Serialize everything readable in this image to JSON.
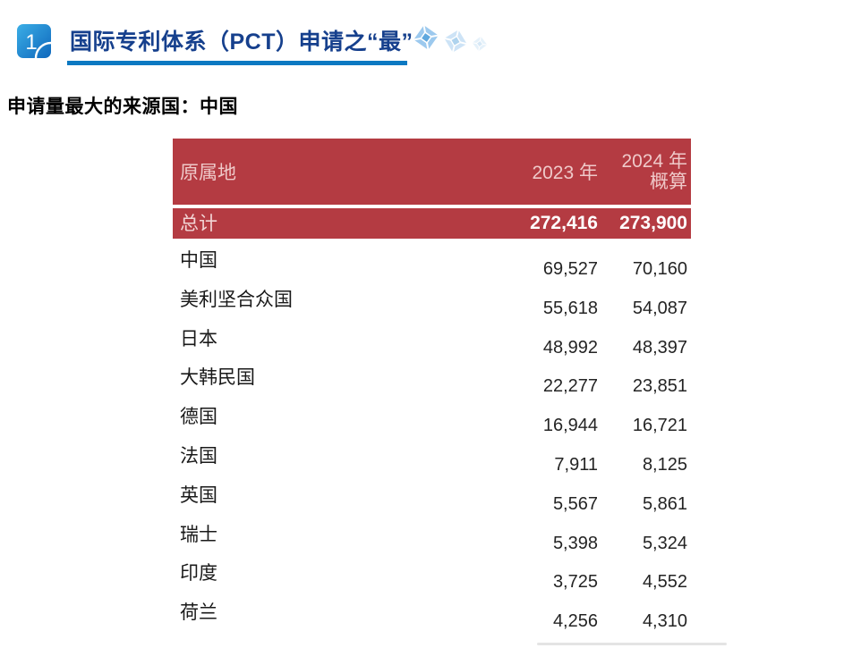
{
  "header": {
    "section_number": "1",
    "title": "国际专利体系（PCT）申请之“最”"
  },
  "subtitle": "申请量最大的来源国：中国",
  "table": {
    "columns": {
      "origin": "原属地",
      "y2023": "2023 年",
      "y2024_line1": "2024 年",
      "y2024_line2": "概算"
    },
    "total": {
      "label": "总计",
      "y2023": "272,416",
      "y2024": "273,900"
    },
    "rows": [
      {
        "label": "中国",
        "y2023": "69,527",
        "y2024": "70,160"
      },
      {
        "label": "美利坚合众国",
        "y2023": "55,618",
        "y2024": "54,087"
      },
      {
        "label": "日本",
        "y2023": "48,992",
        "y2024": "48,397"
      },
      {
        "label": "大韩民国",
        "y2023": "22,277",
        "y2024": "23,851"
      },
      {
        "label": "德国",
        "y2023": "16,944",
        "y2024": "16,721"
      },
      {
        "label": "法国",
        "y2023": "7,911",
        "y2024": "8,125"
      },
      {
        "label": "英国",
        "y2023": "5,567",
        "y2024": "5,861"
      },
      {
        "label": "瑞士",
        "y2023": "5,398",
        "y2024": "5,324"
      },
      {
        "label": "印度",
        "y2023": "3,725",
        "y2024": "4,552"
      },
      {
        "label": "荷兰",
        "y2023": "4,256",
        "y2024": "4,310"
      }
    ]
  },
  "chart_data": {
    "type": "table",
    "title": "申请量最大的来源国：中国",
    "columns": [
      "原属地",
      "2023 年",
      "2024 年 概算"
    ],
    "rows": [
      [
        "总计",
        272416,
        273900
      ],
      [
        "中国",
        69527,
        70160
      ],
      [
        "美利坚合众国",
        55618,
        54087
      ],
      [
        "日本",
        48992,
        48397
      ],
      [
        "大韩民国",
        22277,
        23851
      ],
      [
        "德国",
        16944,
        16721
      ],
      [
        "法国",
        7911,
        8125
      ],
      [
        "英国",
        5567,
        5861
      ],
      [
        "瑞士",
        5398,
        5324
      ],
      [
        "印度",
        3725,
        4552
      ],
      [
        "荷兰",
        4256,
        4310
      ]
    ]
  },
  "colors": {
    "table_red": "#B43B42",
    "header_text_pink": "#EFC9C9",
    "title_blue": "#16408D",
    "underline_blue": "#0C79C2",
    "badge_gradient_start": "#3BAEE6",
    "badge_gradient_end": "#0E67BC",
    "decor_gem_blue": "#9CC9EE"
  }
}
